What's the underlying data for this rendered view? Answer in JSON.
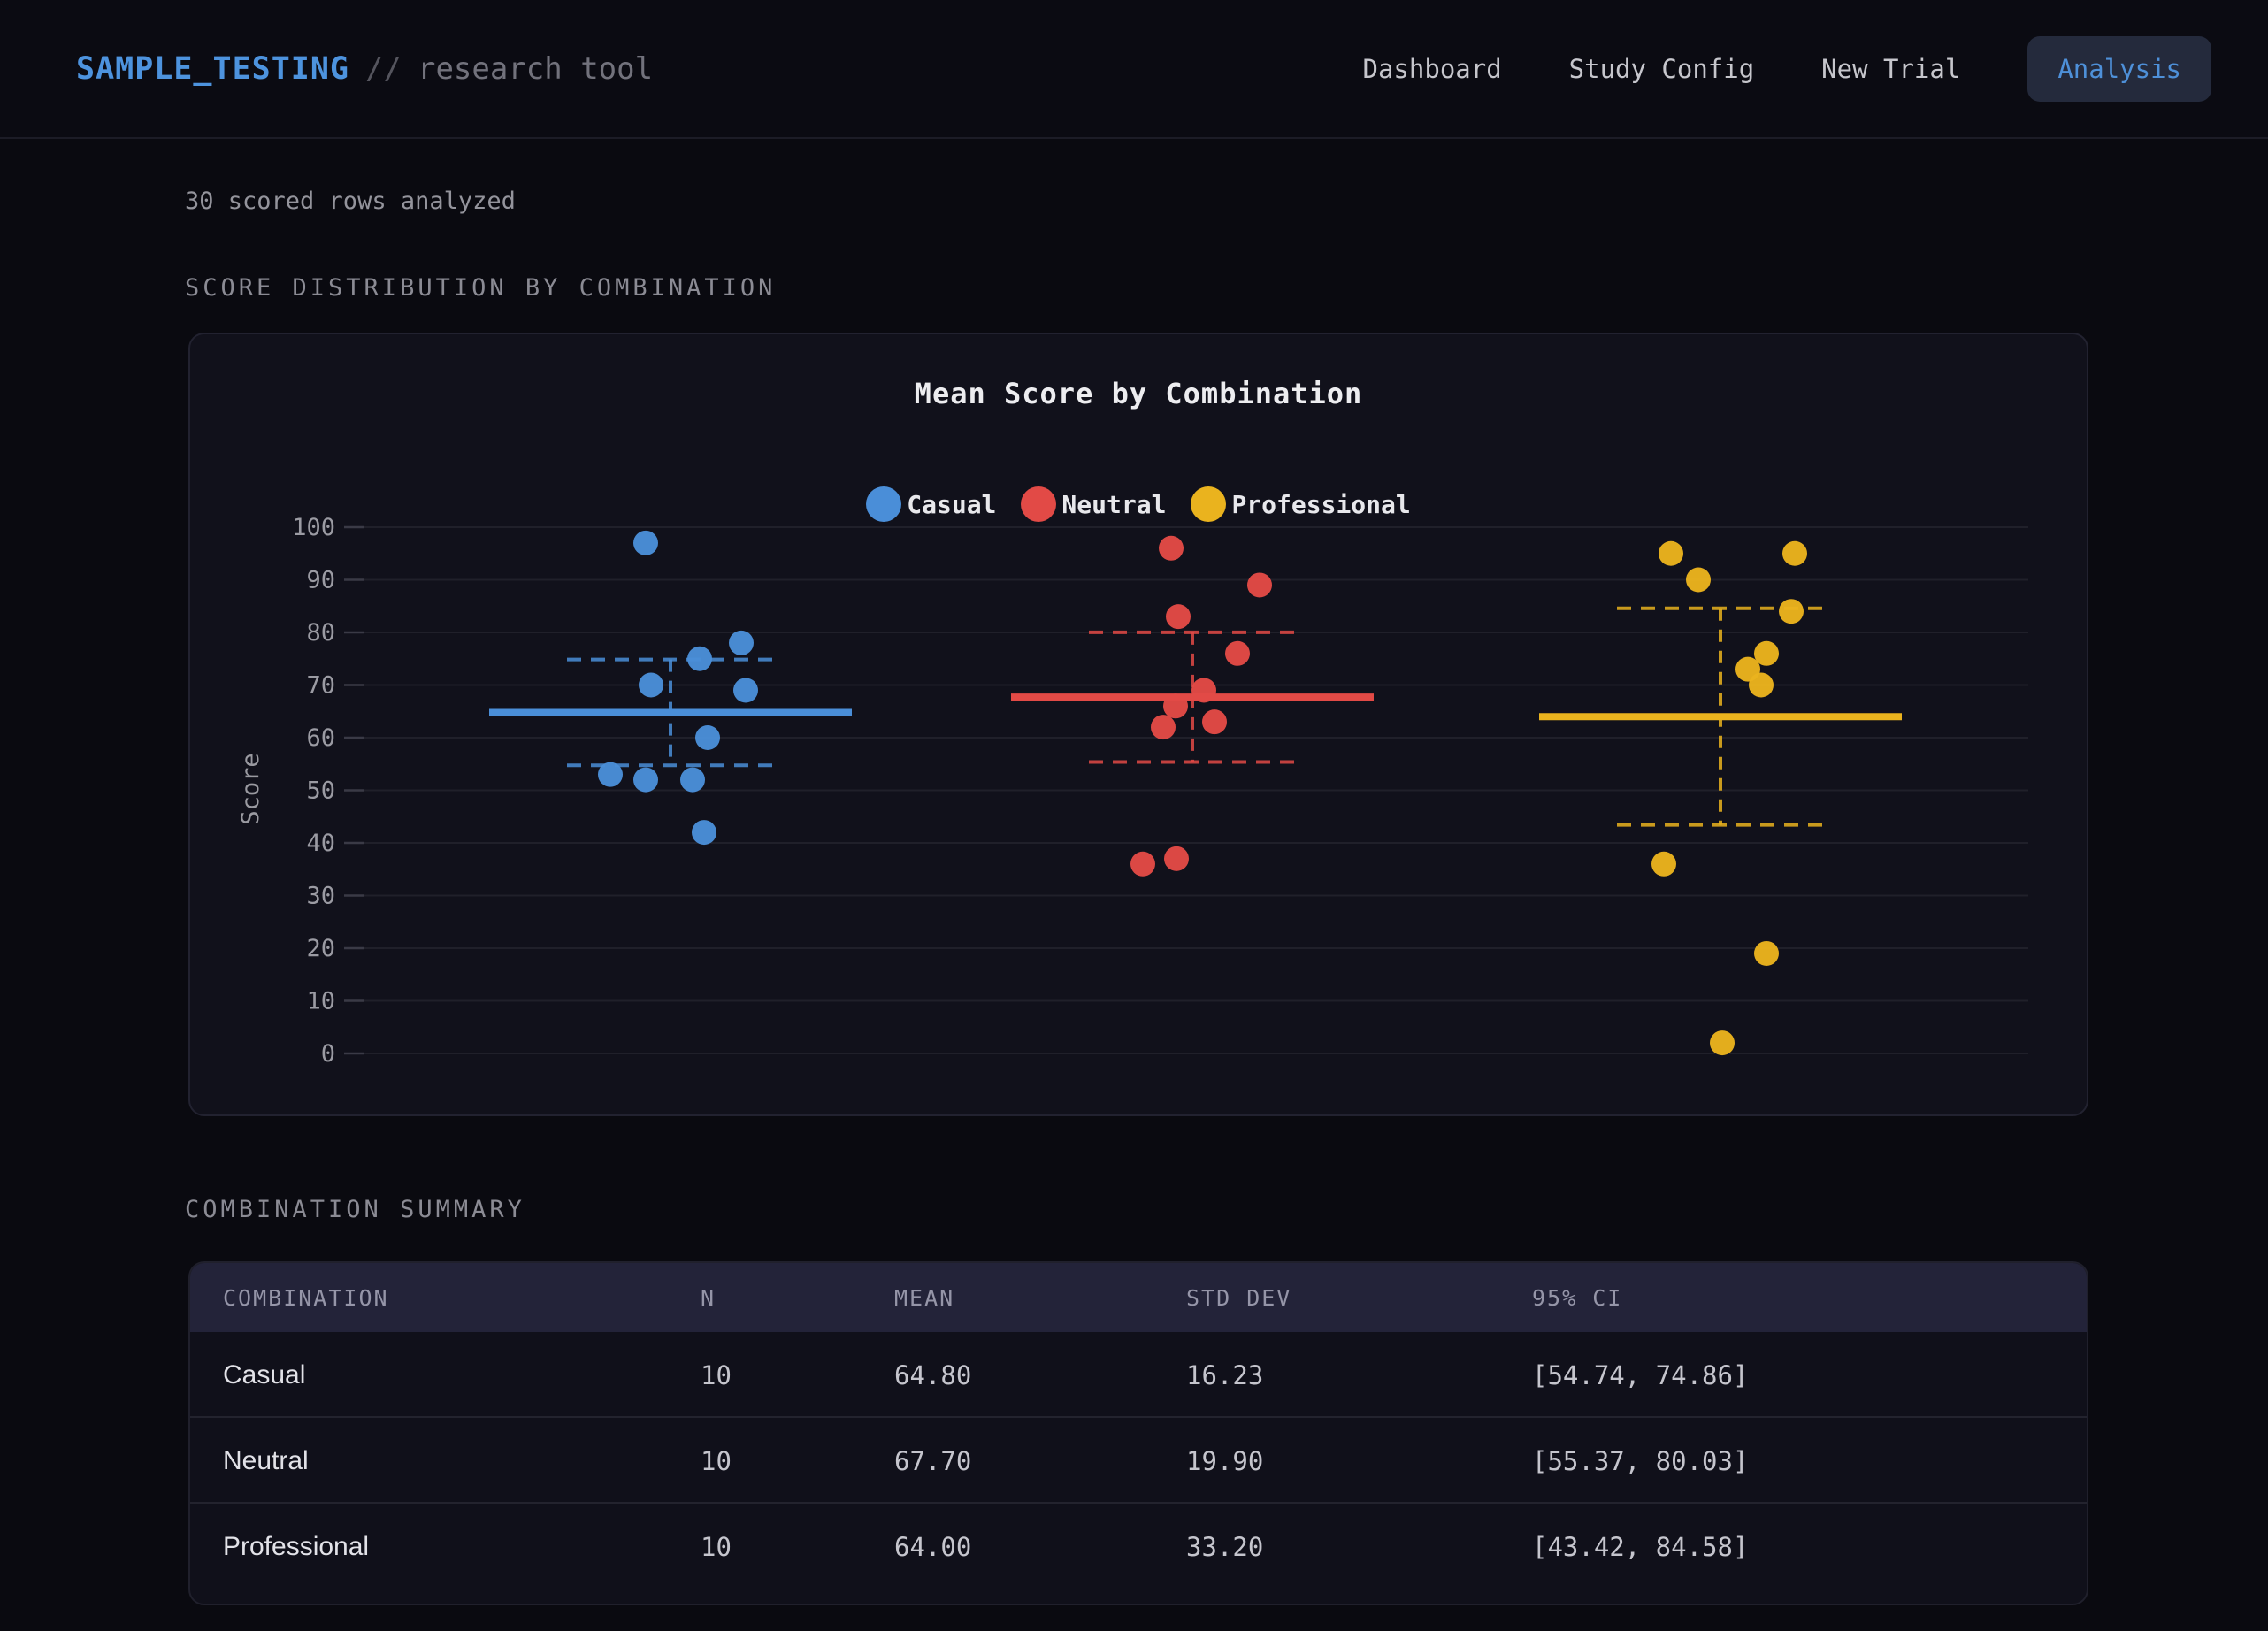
{
  "header": {
    "logo": "SAMPLE_TESTING",
    "separator": "//",
    "subtitle": "research tool",
    "nav": [
      {
        "label": "Dashboard",
        "active": false
      },
      {
        "label": "Study Config",
        "active": false
      },
      {
        "label": "New Trial",
        "active": false
      },
      {
        "label": "Analysis",
        "active": true
      }
    ]
  },
  "status_text": "30 scored rows analyzed",
  "sections": {
    "chart_heading": "SCORE DISTRIBUTION BY COMBINATION",
    "table_heading": "COMBINATION SUMMARY"
  },
  "chart_data": {
    "type": "scatter",
    "title": "Mean Score by Combination",
    "ylabel": "Score",
    "ylim": [
      0,
      100
    ],
    "yticks": [
      0,
      10,
      20,
      30,
      40,
      50,
      60,
      70,
      80,
      90,
      100
    ],
    "grid": true,
    "legend_position": "top",
    "annotation_style": "solid line = mean, dashed lines = 95% CI",
    "groups": [
      {
        "name": "Casual",
        "color": "#4a8ed8",
        "mean": 64.8,
        "ci95": [
          54.74,
          74.86
        ],
        "points": [
          {
            "value": 97,
            "dx": -28
          },
          {
            "value": 78,
            "dx": 80
          },
          {
            "value": 75,
            "dx": 33
          },
          {
            "value": 70,
            "dx": -22
          },
          {
            "value": 69,
            "dx": 85
          },
          {
            "value": 60,
            "dx": 42
          },
          {
            "value": 53,
            "dx": -68
          },
          {
            "value": 52,
            "dx": -28
          },
          {
            "value": 52,
            "dx": 25
          },
          {
            "value": 42,
            "dx": 38
          }
        ]
      },
      {
        "name": "Neutral",
        "color": "#e24a46",
        "mean": 67.7,
        "ci95": [
          55.37,
          80.03
        ],
        "points": [
          {
            "value": 96,
            "dx": -24
          },
          {
            "value": 89,
            "dx": 76
          },
          {
            "value": 83,
            "dx": -16
          },
          {
            "value": 76,
            "dx": 51
          },
          {
            "value": 69,
            "dx": 13
          },
          {
            "value": 66,
            "dx": -19
          },
          {
            "value": 63,
            "dx": 25
          },
          {
            "value": 62,
            "dx": -33
          },
          {
            "value": 37,
            "dx": -18
          },
          {
            "value": 36,
            "dx": -56
          }
        ]
      },
      {
        "name": "Professional",
        "color": "#eab31e",
        "mean": 64.0,
        "ci95": [
          43.42,
          84.58
        ],
        "points": [
          {
            "value": 95,
            "dx": -56
          },
          {
            "value": 95,
            "dx": 84
          },
          {
            "value": 90,
            "dx": -25
          },
          {
            "value": 84,
            "dx": 80
          },
          {
            "value": 76,
            "dx": 52
          },
          {
            "value": 73,
            "dx": 31
          },
          {
            "value": 70,
            "dx": 46
          },
          {
            "value": 36,
            "dx": -64
          },
          {
            "value": 19,
            "dx": 52
          },
          {
            "value": 2,
            "dx": 2
          }
        ]
      }
    ]
  },
  "table": {
    "columns": [
      "COMBINATION",
      "N",
      "MEAN",
      "STD DEV",
      "95% CI"
    ],
    "rows": [
      [
        "Casual",
        "10",
        "64.80",
        "16.23",
        "[54.74, 74.86]"
      ],
      [
        "Neutral",
        "10",
        "67.70",
        "19.90",
        "[55.37, 80.03]"
      ],
      [
        "Professional",
        "10",
        "64.00",
        "33.20",
        "[43.42, 84.58]"
      ]
    ]
  },
  "colors": {
    "page_bg": "#0a0a10",
    "card_bg": "#11111b",
    "accent_blue": "#4d93de",
    "gridline": "#20202a",
    "tick_text": "#9b9ba3",
    "table_header_bg": "#232339"
  }
}
